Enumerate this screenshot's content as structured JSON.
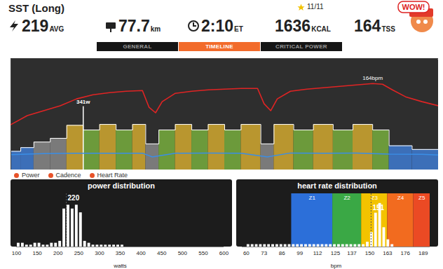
{
  "header": {
    "title": "SST (Long)",
    "rating": "11/11",
    "badge": "WOW!",
    "stats": [
      {
        "value": "219",
        "unit": "AVG"
      },
      {
        "value": "77.7",
        "unit": "km"
      },
      {
        "value": "2:10",
        "unit": "ET"
      },
      {
        "value": "1636",
        "unit": "KCAL"
      },
      {
        "value": "164",
        "unit": "TSS"
      }
    ]
  },
  "tabs": {
    "items": [
      "GENERAL",
      "TIMELINE",
      "CRITICAL POWER"
    ],
    "active": "TIMELINE"
  },
  "chart_data": [
    {
      "type": "timeline",
      "xlim": [
        0,
        130
      ],
      "ylim": [
        0,
        600
      ],
      "y2lim": [
        40,
        200
      ],
      "tick_labels": false,
      "legend": "bottom",
      "series": [
        {
          "name": "Power",
          "type": "bar",
          "x_start": [
            0,
            3,
            7,
            12,
            17,
            22,
            27,
            32,
            37,
            41,
            45,
            50,
            55,
            60,
            65,
            70,
            76,
            80,
            86,
            92,
            98,
            104,
            110,
            115,
            122
          ],
          "x_end": [
            3,
            7,
            12,
            17,
            22,
            27,
            32,
            37,
            41,
            45,
            50,
            55,
            60,
            65,
            70,
            76,
            80,
            86,
            92,
            98,
            104,
            110,
            115,
            122,
            130
          ],
          "values": [
            100,
            120,
            150,
            170,
            240,
            215,
            245,
            215,
            245,
            140,
            215,
            245,
            215,
            245,
            215,
            245,
            140,
            245,
            215,
            245,
            215,
            245,
            215,
            130,
            110
          ],
          "colors": [
            "#3c6fb8",
            "#3c6fb8",
            "#7a7a7a",
            "#7a7a7a",
            "#b9962f",
            "#6c9a3b",
            "#b9962f",
            "#6c9a3b",
            "#b9962f",
            "#7a7a7a",
            "#6c9a3b",
            "#b9962f",
            "#6c9a3b",
            "#b9962f",
            "#6c9a3b",
            "#b9962f",
            "#7a7a7a",
            "#b9962f",
            "#6c9a3b",
            "#b9962f",
            "#6c9a3b",
            "#b9962f",
            "#6c9a3b",
            "#3c6fb8",
            "#3c6fb8"
          ]
        },
        {
          "name": "Cadence",
          "type": "line",
          "color": "#3a8ee6",
          "x": [
            0,
            10,
            20,
            30,
            40,
            43,
            50,
            60,
            70,
            78,
            85,
            95,
            105,
            115,
            125,
            130
          ],
          "values": [
            82,
            88,
            90,
            90,
            90,
            70,
            90,
            91,
            90,
            70,
            91,
            90,
            91,
            85,
            84,
            80
          ]
        },
        {
          "name": "Heart Rate",
          "type": "line",
          "axis": "y2",
          "color": "#e02424",
          "x": [
            0,
            5,
            10,
            15,
            20,
            25,
            30,
            35,
            40,
            42,
            44,
            46,
            50,
            55,
            60,
            65,
            70,
            75,
            77,
            79,
            81,
            85,
            90,
            95,
            100,
            105,
            110,
            113,
            116,
            120,
            125,
            130
          ],
          "values": [
            105,
            118,
            125,
            132,
            142,
            148,
            151,
            153,
            154,
            130,
            122,
            138,
            150,
            153,
            155,
            156,
            157,
            157,
            135,
            125,
            142,
            153,
            156,
            158,
            160,
            162,
            164,
            163,
            155,
            145,
            138,
            132
          ]
        }
      ],
      "annotations": [
        {
          "label": "341w",
          "x": 22,
          "value": 341
        },
        {
          "label": "164bpm",
          "x": 110,
          "value": 164,
          "axis": "y2"
        }
      ]
    },
    {
      "type": "histogram",
      "title": "power distribution",
      "xlabel": "watts",
      "bins": [
        100,
        110,
        120,
        130,
        140,
        150,
        160,
        170,
        180,
        190,
        200,
        210,
        220,
        230,
        240,
        250,
        260,
        270,
        280,
        290,
        300,
        310,
        320,
        330,
        340,
        350,
        360
      ],
      "values": [
        2,
        2,
        1,
        1,
        2,
        2,
        1,
        1,
        2,
        2,
        3,
        20,
        22,
        20,
        22,
        18,
        3,
        2,
        1,
        1,
        1,
        1,
        1,
        1,
        1,
        1
      ],
      "color": "#ffffff",
      "xlim": [
        100,
        600
      ],
      "xticks": [
        100,
        150,
        200,
        250,
        300,
        350,
        400,
        450,
        500,
        550,
        600
      ],
      "ylim": [
        0,
        28
      ],
      "tick_labels": "x",
      "mean": {
        "value": 220,
        "label": "220"
      }
    },
    {
      "type": "histogram",
      "title": "heart rate distribution",
      "xlabel": "bpm",
      "bins": [
        60,
        63,
        66,
        69,
        72,
        75,
        78,
        81,
        84,
        87,
        90,
        93,
        96,
        99,
        102,
        105,
        108,
        111,
        114,
        117,
        120,
        123,
        126,
        129,
        132,
        135,
        138,
        141,
        144,
        147,
        150,
        153,
        156,
        159,
        162,
        165,
        168
      ],
      "values": [
        1,
        1,
        1,
        1,
        1,
        1,
        1,
        1,
        1,
        1,
        1,
        1,
        1,
        1,
        1,
        1,
        1,
        1,
        1,
        1,
        1,
        1,
        1,
        1,
        1,
        1,
        1,
        1,
        1,
        2,
        6,
        14,
        18,
        8,
        3,
        1
      ],
      "color": "#ffffff",
      "xlim": [
        57,
        194
      ],
      "xticks": [
        60,
        73,
        86,
        99,
        112,
        125,
        137,
        150,
        163,
        176,
        189
      ],
      "ylim": [
        0,
        22
      ],
      "tick_labels": "x",
      "mean": {
        "value": 151,
        "label": "151"
      },
      "zones": [
        {
          "name": "Z1",
          "from": 93,
          "to": 123,
          "color": "#2c6fd9"
        },
        {
          "name": "Z2",
          "from": 123,
          "to": 144,
          "color": "#3aa845"
        },
        {
          "name": "Z3",
          "from": 144,
          "to": 163,
          "color": "#f3c300"
        },
        {
          "name": "Z4",
          "from": 163,
          "to": 182,
          "color": "#f26b1f"
        },
        {
          "name": "Z5",
          "from": 182,
          "to": 194,
          "color": "#eb4a24"
        }
      ]
    }
  ]
}
